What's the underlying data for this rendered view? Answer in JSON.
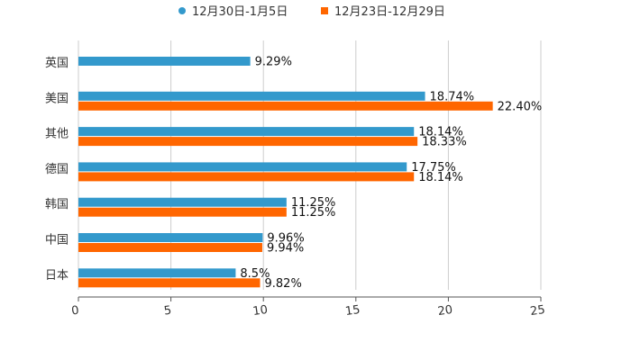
{
  "chart_data": {
    "type": "bar",
    "orientation": "horizontal",
    "title": "",
    "xlabel": "",
    "ylabel": "",
    "categories": [
      "英国",
      "美国",
      "其他",
      "德国",
      "韩国",
      "中国",
      "日本"
    ],
    "series": [
      {
        "name": "12月30日-1月5日",
        "color": "#3399CC",
        "marker": "circle",
        "values": [
          9.29,
          18.74,
          18.14,
          17.75,
          11.25,
          9.96,
          8.5
        ],
        "labels": [
          "9.29%",
          "18.74%",
          "18.14%",
          "17.75%",
          "11.25%",
          "9.96%",
          "8.5%"
        ]
      },
      {
        "name": "12月23日-12月29日",
        "color": "#FF6600",
        "marker": "square",
        "values": [
          null,
          22.4,
          18.33,
          18.14,
          11.25,
          9.94,
          9.82
        ],
        "labels": [
          null,
          "22.40%",
          "18.33%",
          "18.14%",
          "11.25%",
          "9.94%",
          "9.82%"
        ]
      }
    ],
    "xlim": [
      0,
      25
    ],
    "xticks": [
      0,
      5,
      10,
      15,
      20,
      25
    ],
    "xtick_labels": [
      "0",
      "5",
      "10",
      "15",
      "20",
      "25"
    ],
    "grid": true,
    "legend_position": "top-center"
  }
}
